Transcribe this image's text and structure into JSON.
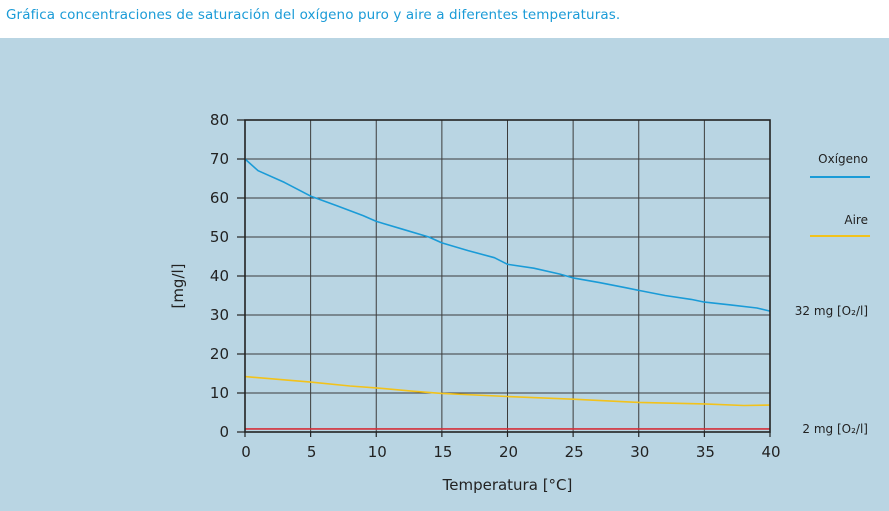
{
  "caption": "Gráfica concentraciones de saturación del oxígeno puro y aire a diferentes temperaturas.",
  "colors": {
    "panel": "#b9d5e3",
    "oxygen": "#1a9bd7",
    "air": "#f2c21b",
    "limit": "#d6303a",
    "grid": "#3c3c3c"
  },
  "chart_data": {
    "type": "line",
    "title": "",
    "xlabel": "Temperatura [°C]",
    "ylabel": "[mg/l]",
    "xlim": [
      0,
      40
    ],
    "ylim": [
      0,
      80
    ],
    "x_ticks": [
      0,
      5,
      10,
      15,
      20,
      25,
      30,
      35,
      40
    ],
    "y_ticks": [
      0,
      10,
      20,
      30,
      40,
      50,
      60,
      70,
      80
    ],
    "grid": true,
    "legend_position": "right",
    "series": [
      {
        "name": "Oxígeno",
        "color": "#1a9bd7",
        "x": [
          0,
          1,
          3,
          5,
          7,
          9,
          10,
          12,
          14,
          15,
          17,
          19,
          20,
          22,
          24,
          25,
          27,
          29,
          30,
          32,
          34,
          35,
          37,
          39,
          40
        ],
        "y": [
          70.0,
          67.0,
          64.0,
          60.5,
          58.0,
          55.5,
          54.0,
          52.0,
          50.0,
          48.5,
          46.5,
          44.7,
          43.0,
          42.0,
          40.5,
          39.5,
          38.3,
          37.0,
          36.3,
          35.0,
          34.0,
          33.3,
          32.6,
          31.8,
          31.0
        ]
      },
      {
        "name": "Aire",
        "color": "#f2c21b",
        "x": [
          0,
          5,
          8,
          10,
          13,
          15,
          20,
          25,
          30,
          35,
          38,
          40
        ],
        "y": [
          14.2,
          12.8,
          11.8,
          11.3,
          10.4,
          9.9,
          9.1,
          8.4,
          7.6,
          7.2,
          6.8,
          6.9
        ]
      },
      {
        "name": "",
        "color": "#d6303a",
        "x": [
          0,
          40
        ],
        "y": [
          0.8,
          0.8
        ]
      }
    ],
    "annotations": [
      {
        "text": "32 mg [O₂/l]",
        "y": 31
      },
      {
        "text": "2 mg [O₂/l]",
        "y": 0.8
      }
    ]
  }
}
